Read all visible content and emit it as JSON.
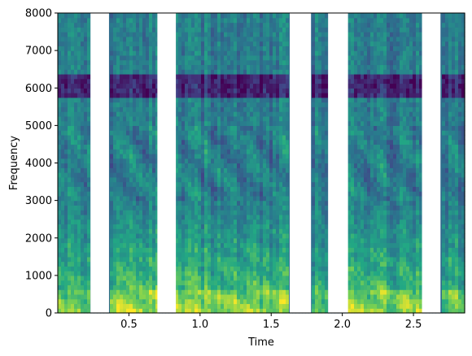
{
  "chart_data": {
    "type": "heatmap",
    "title": "",
    "xlabel": "Time",
    "ylabel": "Frequency",
    "xlim": [
      0.0,
      2.86
    ],
    "ylim": [
      0,
      8000
    ],
    "x_ticks": [
      0.5,
      1.0,
      1.5,
      2.0,
      2.5
    ],
    "x_tick_labels": [
      "0.5",
      "1.0",
      "1.5",
      "2.0",
      "2.5"
    ],
    "y_ticks": [
      0,
      1000,
      2000,
      3000,
      4000,
      5000,
      6000,
      7000,
      8000
    ],
    "y_tick_labels": [
      "0",
      "1000",
      "2000",
      "3000",
      "4000",
      "5000",
      "6000",
      "7000",
      "8000"
    ],
    "colormap": "viridis",
    "grid": false,
    "legend": "none",
    "gaps_time_ranges": [
      [
        0.23,
        0.36
      ],
      [
        0.7,
        0.83
      ],
      [
        1.63,
        1.78
      ],
      [
        1.9,
        2.04
      ],
      [
        2.56,
        2.69
      ]
    ],
    "speech_segments": [
      {
        "start": 0.0,
        "end": 0.23,
        "intensity": 0.55
      },
      {
        "start": 0.36,
        "end": 0.7,
        "intensity": 0.75
      },
      {
        "start": 0.83,
        "end": 1.63,
        "intensity": 0.7
      },
      {
        "start": 1.78,
        "end": 1.9,
        "intensity": 0.5
      },
      {
        "start": 2.04,
        "end": 2.56,
        "intensity": 0.65
      },
      {
        "start": 2.69,
        "end": 2.86,
        "intensity": 0.55
      }
    ],
    "notch_band_hz": [
      5700,
      6400
    ],
    "colors": {
      "gap": "#ffffff",
      "low": "#440154",
      "mid": "#21918c",
      "high": "#fde725"
    }
  }
}
